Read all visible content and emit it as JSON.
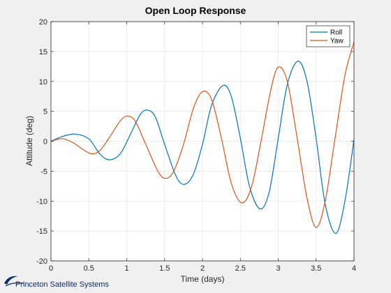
{
  "chart_data": {
    "type": "line",
    "title": "Open Loop Response",
    "xlabel": "Time (days)",
    "ylabel": "Attitude (deg)",
    "xlim": [
      0,
      4
    ],
    "ylim": [
      -20,
      20
    ],
    "x_ticks": [
      0,
      0.5,
      1,
      1.5,
      2,
      2.5,
      3,
      3.5,
      4
    ],
    "x_tick_labels": [
      "0",
      "0.5",
      "1",
      "1.5",
      "2",
      "2.5",
      "3",
      "3.5",
      "4"
    ],
    "y_ticks": [
      -20,
      -15,
      -10,
      -5,
      0,
      5,
      10,
      15,
      20
    ],
    "y_tick_labels": [
      "-20",
      "-15",
      "-10",
      "-5",
      "0",
      "5",
      "10",
      "15",
      "20"
    ],
    "grid": true,
    "legend": "top-right",
    "series": [
      {
        "name": "Roll",
        "color": "#0072BD",
        "points": [
          [
            0,
            0
          ],
          [
            0.15,
            0.8
          ],
          [
            0.32,
            1.2
          ],
          [
            0.5,
            0.4
          ],
          [
            0.65,
            -2.2
          ],
          [
            0.78,
            -3.1
          ],
          [
            0.92,
            -2.0
          ],
          [
            1.05,
            1.2
          ],
          [
            1.18,
            4.5
          ],
          [
            1.28,
            5.2
          ],
          [
            1.38,
            4.0
          ],
          [
            1.5,
            -0.5
          ],
          [
            1.65,
            -5.8
          ],
          [
            1.76,
            -7.2
          ],
          [
            1.88,
            -5.5
          ],
          [
            2.0,
            -0.5
          ],
          [
            2.12,
            6.0
          ],
          [
            2.27,
            9.3
          ],
          [
            2.38,
            7.5
          ],
          [
            2.5,
            0.5
          ],
          [
            2.62,
            -7.5
          ],
          [
            2.76,
            -11.3
          ],
          [
            2.88,
            -8.5
          ],
          [
            3.0,
            0.5
          ],
          [
            3.12,
            9.5
          ],
          [
            3.26,
            13.4
          ],
          [
            3.38,
            10.0
          ],
          [
            3.5,
            0.5
          ],
          [
            3.62,
            -10.5
          ],
          [
            3.76,
            -15.4
          ],
          [
            3.88,
            -10.0
          ],
          [
            4.0,
            0.3
          ]
        ]
      },
      {
        "name": "Yaw",
        "color": "#D95319",
        "points": [
          [
            0,
            0
          ],
          [
            0.08,
            0.3
          ],
          [
            0.17,
            0.4
          ],
          [
            0.3,
            -0.3
          ],
          [
            0.45,
            -1.6
          ],
          [
            0.55,
            -2.1
          ],
          [
            0.65,
            -1.5
          ],
          [
            0.78,
            0.8
          ],
          [
            0.92,
            3.5
          ],
          [
            1.02,
            4.2
          ],
          [
            1.12,
            3.2
          ],
          [
            1.25,
            -0.5
          ],
          [
            1.42,
            -5.2
          ],
          [
            1.52,
            -6.2
          ],
          [
            1.62,
            -5.0
          ],
          [
            1.75,
            -0.5
          ],
          [
            1.88,
            5.5
          ],
          [
            2.0,
            8.3
          ],
          [
            2.12,
            7.0
          ],
          [
            2.25,
            0.5
          ],
          [
            2.38,
            -7.0
          ],
          [
            2.52,
            -10.3
          ],
          [
            2.65,
            -7.5
          ],
          [
            2.78,
            0.5
          ],
          [
            2.9,
            8.5
          ],
          [
            3.0,
            12.4
          ],
          [
            3.12,
            10.0
          ],
          [
            3.25,
            0.5
          ],
          [
            3.38,
            -9.5
          ],
          [
            3.5,
            -14.4
          ],
          [
            3.62,
            -10.0
          ],
          [
            3.75,
            0.5
          ],
          [
            3.88,
            11.0
          ],
          [
            4.0,
            16.6
          ]
        ]
      }
    ]
  },
  "watermark": {
    "text": "Princeton Satellite Systems",
    "icon": "satellite-swoosh-icon",
    "color": "#0b2d6b"
  }
}
